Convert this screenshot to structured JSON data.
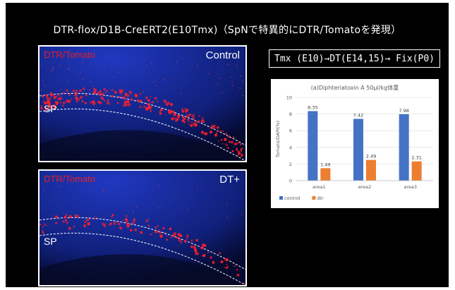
{
  "slide": {
    "title": "DTR-flox/D1B-CreERT2(E10Tmx)（SpNで特異的にDTR/Tomatoを発現）",
    "protocol": "Tmx (E10)→DT(E14,15)→ Fix(P0)"
  },
  "panels": [
    {
      "red_label": "DTR/Tomato",
      "white_label": "Control",
      "region_label": "SP"
    },
    {
      "red_label": "DTR/Tomato",
      "white_label": "DT+",
      "region_label": "SP"
    }
  ],
  "colors": {
    "control": "#4472c4",
    "dtr": "#ed7d31",
    "tissue_blue": "#1a2fa8",
    "tomato_red": "#ff1e2a"
  },
  "chart_data": {
    "type": "bar",
    "title": "(a)Diphteriatoxin A 50μl/kg体重",
    "ylabel": "Tomato/DAPI(%)",
    "xlabel": "",
    "categories": [
      "area1",
      "area2",
      "area3"
    ],
    "series": [
      {
        "name": "control",
        "values": [
          8.35,
          7.42,
          7.98
        ]
      },
      {
        "name": "dtr",
        "values": [
          1.49,
          2.49,
          2.31
        ]
      }
    ],
    "ylim": [
      0,
      10
    ],
    "yticks": [
      0,
      2,
      4,
      6,
      8,
      10
    ],
    "grid": true,
    "legend": "bottom-left",
    "data_labels": true
  }
}
